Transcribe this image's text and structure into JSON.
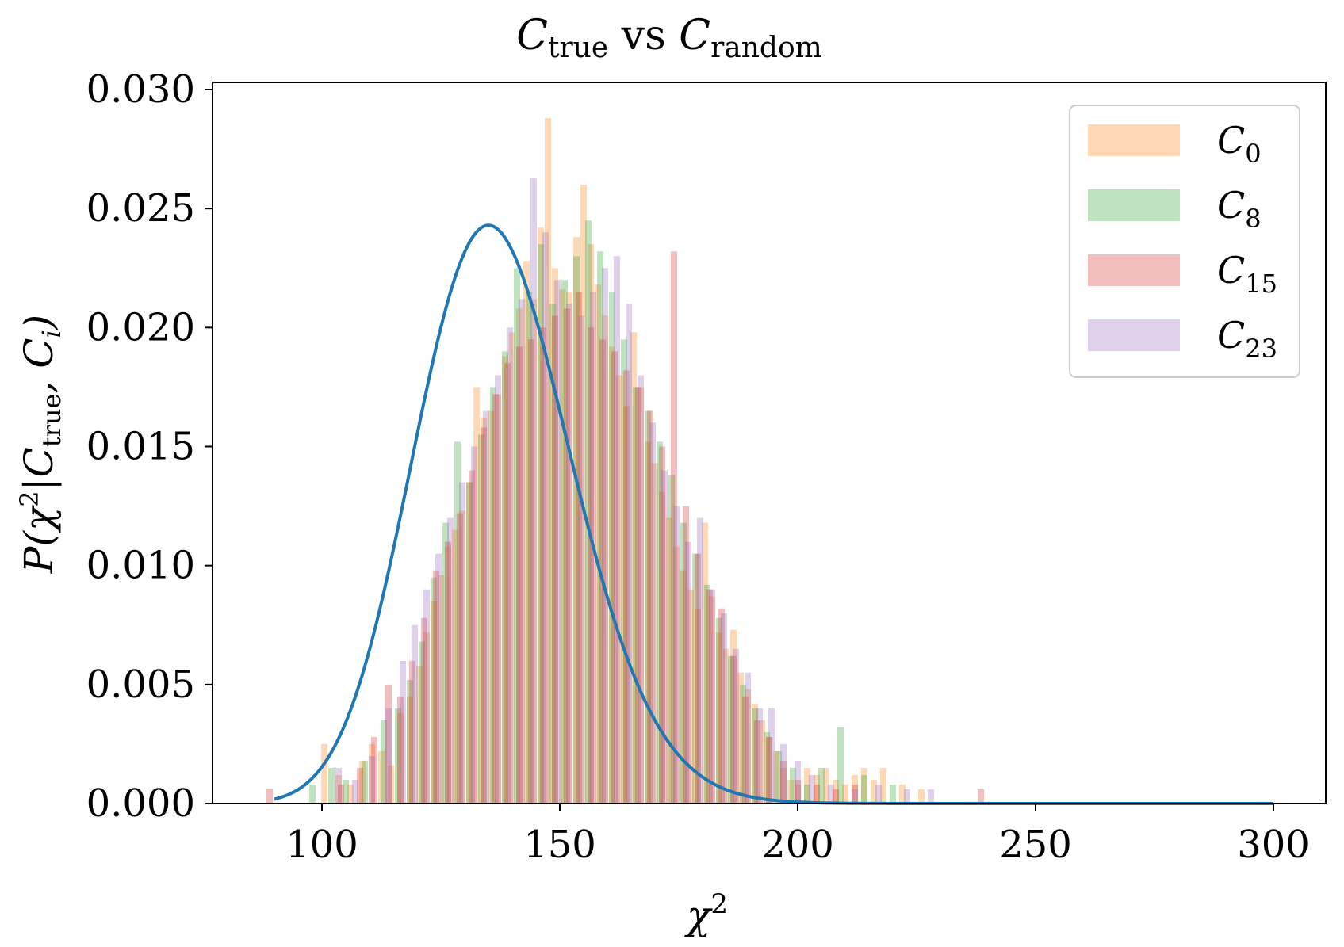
{
  "chart_data": {
    "type": "bar",
    "title": {
      "main_1": "C",
      "sub_1": "true",
      "mid": " vs ",
      "main_2": "C",
      "sub_2": "random"
    },
    "xlabel": {
      "main": "χ",
      "sup": "2"
    },
    "ylabel": "P(χ²|C_true, C_i)",
    "xlim": [
      77,
      311
    ],
    "ylim": [
      0,
      0.0303
    ],
    "x_ticks": [
      100,
      150,
      200,
      250,
      300
    ],
    "x_tick_labels": [
      "100",
      "150",
      "200",
      "250",
      "300"
    ],
    "y_ticks": [
      0,
      0.005,
      0.01,
      0.015,
      0.02,
      0.025,
      0.03
    ],
    "y_tick_labels": [
      "0.000",
      "0.005",
      "0.010",
      "0.015",
      "0.020",
      "0.025",
      "0.030"
    ],
    "grid": false,
    "legend_position": "top-right",
    "series": [
      {
        "name": "C_0",
        "legend_main": "C",
        "legend_sub": "0",
        "color": "#ff7f0e",
        "opacity": 0.3,
        "bins": [
          [
            100.5,
            0.0025
          ],
          [
            103.5,
            0.0012
          ],
          [
            106,
            0.0008
          ],
          [
            108.5,
            0.0018
          ],
          [
            110.5,
            0.0025
          ],
          [
            112.5,
            0.0022
          ],
          [
            114.5,
            0.0016
          ],
          [
            116.5,
            0.0038
          ],
          [
            118.5,
            0.0045
          ],
          [
            120.5,
            0.0058
          ],
          [
            122,
            0.0072
          ],
          [
            123.5,
            0.0085
          ],
          [
            125,
            0.0096
          ],
          [
            126.5,
            0.0108
          ],
          [
            128,
            0.0115
          ],
          [
            129.5,
            0.0123
          ],
          [
            131,
            0.0135
          ],
          [
            132.5,
            0.0175
          ],
          [
            134,
            0.0162
          ],
          [
            135.5,
            0.0165
          ],
          [
            137,
            0.0172
          ],
          [
            138.5,
            0.0188
          ],
          [
            140,
            0.0198
          ],
          [
            141.5,
            0.0208
          ],
          [
            143,
            0.0228
          ],
          [
            144.5,
            0.0212
          ],
          [
            146,
            0.0242
          ],
          [
            147.5,
            0.0288
          ],
          [
            149,
            0.0225
          ],
          [
            150.5,
            0.0216
          ],
          [
            152,
            0.0215
          ],
          [
            153.5,
            0.0238
          ],
          [
            155,
            0.026
          ],
          [
            156.5,
            0.0235
          ],
          [
            158,
            0.0218
          ],
          [
            159.5,
            0.0205
          ],
          [
            161,
            0.0192
          ],
          [
            162.5,
            0.018
          ],
          [
            164,
            0.0167
          ],
          [
            165.5,
            0.0198
          ],
          [
            167,
            0.0175
          ],
          [
            168.5,
            0.0152
          ],
          [
            170,
            0.0143
          ],
          [
            171.5,
            0.0131
          ],
          [
            173,
            0.012
          ],
          [
            174.5,
            0.0108
          ],
          [
            176,
            0.0098
          ],
          [
            177.5,
            0.009
          ],
          [
            179,
            0.0082
          ],
          [
            180.5,
            0.0118
          ],
          [
            182,
            0.0087
          ],
          [
            183.5,
            0.0072
          ],
          [
            185,
            0.0065
          ],
          [
            186.5,
            0.0073
          ],
          [
            188,
            0.0055
          ],
          [
            189.5,
            0.0048
          ],
          [
            191,
            0.0042
          ],
          [
            192.5,
            0.0035
          ],
          [
            194,
            0.0028
          ],
          [
            195.5,
            0.0022
          ],
          [
            197,
            0.0015
          ],
          [
            198.5,
            0.001
          ],
          [
            200,
            0.0008
          ],
          [
            202,
            0.0015
          ],
          [
            204,
            0.0012
          ],
          [
            206,
            0.0015
          ],
          [
            208,
            0.001
          ],
          [
            210,
            0.0008
          ],
          [
            212,
            0.0012
          ],
          [
            214,
            0.0015
          ],
          [
            216,
            0.001
          ],
          [
            218,
            0.0015
          ],
          [
            222,
            0.0008
          ],
          [
            226,
            0.0006
          ]
        ]
      },
      {
        "name": "C_8",
        "legend_main": "C",
        "legend_sub": "8",
        "color": "#2ca02c",
        "opacity": 0.3,
        "bins": [
          [
            98,
            0.0008
          ],
          [
            102,
            0.0015
          ],
          [
            105,
            0.001
          ],
          [
            109,
            0.0018
          ],
          [
            113,
            0.0035
          ],
          [
            116,
            0.004
          ],
          [
            118.5,
            0.0052
          ],
          [
            121,
            0.0068
          ],
          [
            123.5,
            0.0095
          ],
          [
            126,
            0.0118
          ],
          [
            128.5,
            0.0152
          ],
          [
            131,
            0.0135
          ],
          [
            133.5,
            0.0155
          ],
          [
            136,
            0.0175
          ],
          [
            138.5,
            0.019
          ],
          [
            141,
            0.0225
          ],
          [
            143.5,
            0.0215
          ],
          [
            146,
            0.0235
          ],
          [
            148.5,
            0.021
          ],
          [
            151,
            0.022
          ],
          [
            153.5,
            0.023
          ],
          [
            156,
            0.0245
          ],
          [
            158.5,
            0.0232
          ],
          [
            161,
            0.0215
          ],
          [
            163.5,
            0.0195
          ],
          [
            166,
            0.0175
          ],
          [
            168.5,
            0.0165
          ],
          [
            171,
            0.0152
          ],
          [
            173.5,
            0.0138
          ],
          [
            176,
            0.0118
          ],
          [
            178.5,
            0.0105
          ],
          [
            181,
            0.0092
          ],
          [
            183.5,
            0.0078
          ],
          [
            186,
            0.0062
          ],
          [
            188.5,
            0.005
          ],
          [
            191,
            0.004
          ],
          [
            193.5,
            0.003
          ],
          [
            196,
            0.0022
          ],
          [
            199,
            0.0015
          ],
          [
            202,
            0.0008
          ],
          [
            205,
            0.0015
          ],
          [
            209,
            0.0032
          ],
          [
            214,
            0.0012
          ],
          [
            220,
            0.0008
          ]
        ]
      },
      {
        "name": "C_15",
        "legend_main": "C",
        "legend_sub": "15",
        "color": "#d62728",
        "opacity": 0.3,
        "bins": [
          [
            89,
            0.0006
          ],
          [
            104,
            0.0008
          ],
          [
            108,
            0.0015
          ],
          [
            111,
            0.0028
          ],
          [
            114,
            0.005
          ],
          [
            116.5,
            0.0045
          ],
          [
            119,
            0.006
          ],
          [
            121.5,
            0.0078
          ],
          [
            124,
            0.0098
          ],
          [
            126.5,
            0.011
          ],
          [
            129,
            0.0122
          ],
          [
            131.5,
            0.014
          ],
          [
            134,
            0.0158
          ],
          [
            136.5,
            0.0172
          ],
          [
            139,
            0.0185
          ],
          [
            141.5,
            0.0192
          ],
          [
            144,
            0.0195
          ],
          [
            146.5,
            0.02
          ],
          [
            149,
            0.0205
          ],
          [
            151.5,
            0.0208
          ],
          [
            154,
            0.0215
          ],
          [
            156.5,
            0.02
          ],
          [
            159,
            0.0195
          ],
          [
            161.5,
            0.019
          ],
          [
            164,
            0.0182
          ],
          [
            166.5,
            0.0175
          ],
          [
            169,
            0.0165
          ],
          [
            171.5,
            0.015
          ],
          [
            174,
            0.0232
          ],
          [
            176.5,
            0.0125
          ],
          [
            179,
            0.0105
          ],
          [
            181.5,
            0.009
          ],
          [
            184,
            0.0082
          ],
          [
            186.5,
            0.0062
          ],
          [
            189,
            0.0045
          ],
          [
            191.5,
            0.0035
          ],
          [
            194,
            0.0028
          ],
          [
            197,
            0.0018
          ],
          [
            200,
            0.001
          ],
          [
            204,
            0.0008
          ],
          [
            208,
            0.0006
          ],
          [
            212,
            0.0008
          ],
          [
            238.5,
            0.0006
          ]
        ]
      },
      {
        "name": "C_23",
        "legend_main": "C",
        "legend_sub": "23",
        "color": "#9467bd",
        "opacity": 0.3,
        "bins": [
          [
            103.5,
            0.0015
          ],
          [
            107,
            0.001
          ],
          [
            110.5,
            0.002
          ],
          [
            114,
            0.004
          ],
          [
            117,
            0.006
          ],
          [
            119.5,
            0.0075
          ],
          [
            122,
            0.009
          ],
          [
            124.5,
            0.0105
          ],
          [
            127,
            0.012
          ],
          [
            129.5,
            0.0135
          ],
          [
            132,
            0.015
          ],
          [
            134.5,
            0.0165
          ],
          [
            137,
            0.018
          ],
          [
            139.5,
            0.02
          ],
          [
            142,
            0.0212
          ],
          [
            144.5,
            0.0263
          ],
          [
            147,
            0.024
          ],
          [
            149.5,
            0.022
          ],
          [
            152,
            0.021
          ],
          [
            154.5,
            0.0205
          ],
          [
            157,
            0.0215
          ],
          [
            159.5,
            0.0225
          ],
          [
            162,
            0.023
          ],
          [
            164.5,
            0.021
          ],
          [
            167,
            0.018
          ],
          [
            169.5,
            0.016
          ],
          [
            172,
            0.014
          ],
          [
            174.5,
            0.0125
          ],
          [
            177,
            0.011
          ],
          [
            179.5,
            0.012
          ],
          [
            182,
            0.009
          ],
          [
            184.5,
            0.008
          ],
          [
            187,
            0.0065
          ],
          [
            189.5,
            0.0055
          ],
          [
            192,
            0.004
          ],
          [
            194.5,
            0.004
          ],
          [
            197,
            0.0025
          ],
          [
            200,
            0.0018
          ],
          [
            203,
            0.0012
          ],
          [
            207,
            0.0008
          ],
          [
            212,
            0.0006
          ],
          [
            217,
            0.0008
          ],
          [
            223,
            0.0006
          ],
          [
            228,
            0.0006
          ]
        ]
      }
    ],
    "curve": {
      "color": "#1f77b4",
      "x_range": [
        90,
        300
      ],
      "peak_x": 135,
      "peak_y": 0.0243
    }
  }
}
